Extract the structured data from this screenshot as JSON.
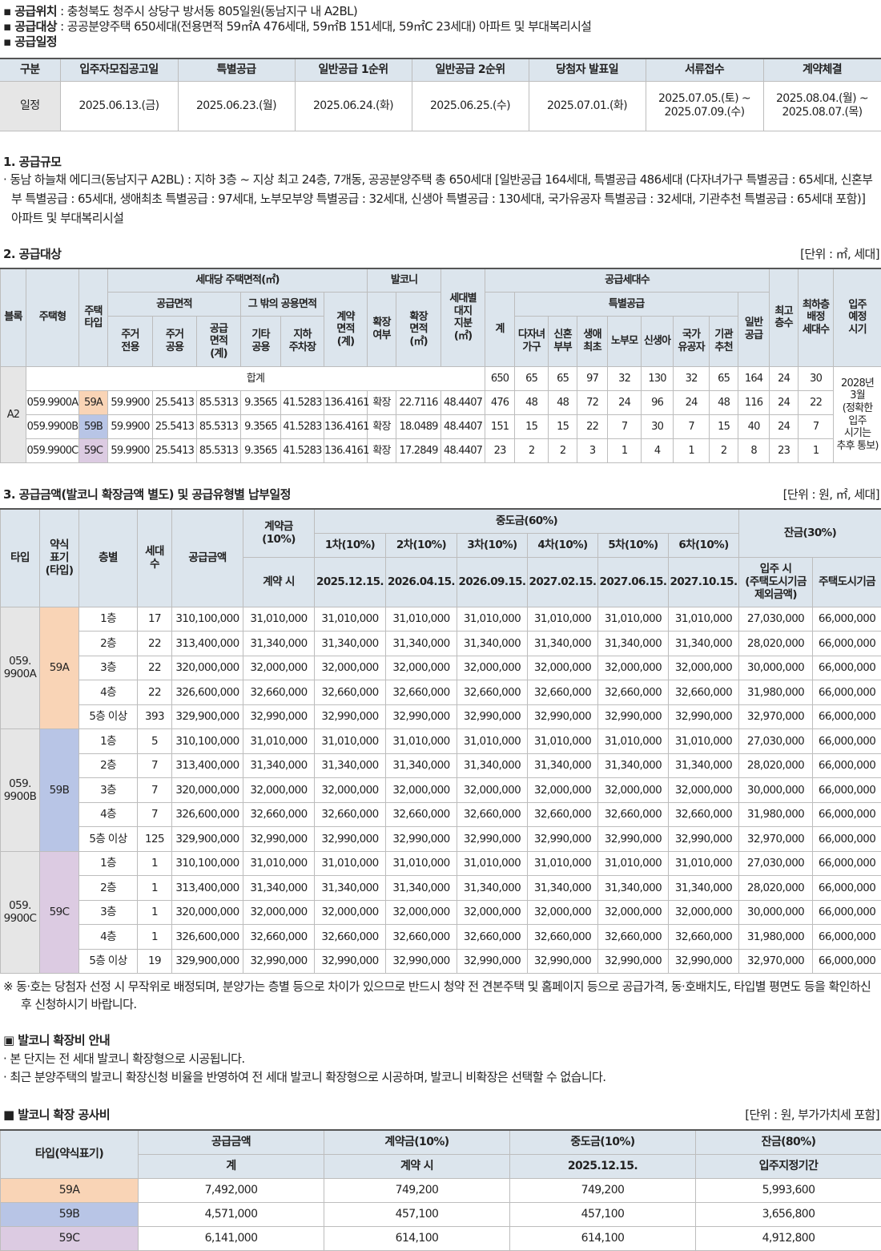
{
  "info": [
    {
      "label": "▪ 공급위치",
      "text": " : 충청북도 청주시 상당구 방서동 805일원(동남지구 내 A2BL)"
    },
    {
      "label": "▪ 공급대상",
      "text": " : 공공분양주택 650세대(전용면적 59㎡A 476세대, 59㎡B 151세대, 59㎡C 23세대) 아파트 및 부대복리시설"
    },
    {
      "label": "▪ 공급일정"
    }
  ],
  "schedule": {
    "headers": [
      "구분",
      "입주자모집공고일",
      "특별공급",
      "일반공급 1순위",
      "일반공급 2순위",
      "당첨자 발표일",
      "서류접수",
      "계약체결"
    ],
    "row": [
      "일정",
      "2025.06.13.(금)",
      "2025.06.23.(월)",
      "2025.06.24.(화)",
      "2025.06.25.(수)",
      "2025.07.01.(화)",
      "2025.07.05.(토) ~\n2025.07.09.(수)",
      "2025.08.04.(월) ~\n2025.08.07.(목)"
    ]
  },
  "scale": {
    "title": "1. 공급규모",
    "text": "· 동남 하늘채 에디크(동남지구 A2BL) : 지하 3층 ~ 지상 최고 24층, 7개동, 공공분양주택 총 650세대 [일반공급 164세대, 특별공급 486세대 (다자녀가구 특별공급 : 65세대, 신혼부부 특별공급 : 65세대, 생애최초 특별공급 : 97세대, 노부모부양 특별공급 : 32세대, 신생아 특별공급 : 130세대, 국가유공자 특별공급 : 32세대, 기관추천 특별공급 : 65세대 포함)] 아파트 및 부대복리시설"
  },
  "target": {
    "title": "2. 공급대상",
    "unit": "[단위 : ㎡, 세대]",
    "headers": [
      "블록",
      "주택형",
      "주택\n타입",
      "세대당 주택면적(㎡)",
      "발코니",
      "세대별\n대지\n지분\n(㎡)",
      "공급세대수",
      "최고\n층수",
      "최하층\n배정\n세대수",
      "입주\n예정\n시기",
      "공급면적",
      "그 밖의 공용면적",
      "계약\n면적\n(계)",
      "확장\n여부",
      "확장\n면적\n(㎡)",
      "계",
      "특별공급",
      "일반\n공급",
      "주거\n전용",
      "주거\n공용",
      "공급\n면적\n(계)",
      "기타\n공용",
      "지하\n주차장",
      "다자녀\n가구",
      "신혼\n부부",
      "생애\n최초",
      "노부모",
      "신생아",
      "국가\n유공자",
      "기관\n추천"
    ],
    "block": "A2",
    "total_label": "합계",
    "total": [
      "650",
      "65",
      "65",
      "97",
      "32",
      "130",
      "32",
      "65",
      "164",
      "24",
      "30"
    ],
    "move_in": "2028년\n3월\n(정확한\n입주\n시기는\n추후 통보)",
    "rows": [
      {
        "color": "#f9d4b6",
        "cells": [
          "059.9900A",
          "59A",
          "59.9900",
          "25.5413",
          "85.5313",
          "9.3565",
          "41.5283",
          "136.4161",
          "확장",
          "22.7116",
          "48.4407",
          "476",
          "48",
          "48",
          "72",
          "24",
          "96",
          "24",
          "48",
          "116",
          "24",
          "22"
        ]
      },
      {
        "color": "#b8c5e6",
        "cells": [
          "059.9900B",
          "59B",
          "59.9900",
          "25.5413",
          "85.5313",
          "9.3565",
          "41.5283",
          "136.4161",
          "확장",
          "18.0489",
          "48.4407",
          "151",
          "15",
          "15",
          "22",
          "7",
          "30",
          "7",
          "15",
          "40",
          "24",
          "7"
        ]
      },
      {
        "color": "#dccbe2",
        "cells": [
          "059.9900C",
          "59C",
          "59.9900",
          "25.5413",
          "85.5313",
          "9.3565",
          "41.5283",
          "136.4161",
          "확장",
          "17.2849",
          "48.4407",
          "23",
          "2",
          "2",
          "3",
          "1",
          "4",
          "1",
          "2",
          "8",
          "23",
          "1"
        ]
      }
    ]
  },
  "price": {
    "title": "3. 공급금액(발코니 확장금액 별도) 및 공급유형별 납부일정",
    "unit": "[단위 : 원, ㎡, 세대]",
    "headers": [
      "타입",
      "약식\n표기\n(타입)",
      "층별",
      "세대\n수",
      "공급금액",
      "계약금\n(10%)",
      "중도금(60%)",
      "잔금(30%)",
      "1차(10%)",
      "2차(10%)",
      "3차(10%)",
      "4차(10%)",
      "5차(10%)",
      "6차(10%)",
      "계약 시",
      "2025.12.15.",
      "2026.04.15.",
      "2026.09.15.",
      "2027.02.15.",
      "2027.06.15.",
      "2027.10.15.",
      "입주 시\n(주택도시기금\n제외금액)",
      "주택도시기금"
    ],
    "groups": [
      {
        "type": "059.\n9900A",
        "short": "59A",
        "color": "#f9d4b6",
        "rows": [
          [
            "1층",
            "17",
            "310,100,000",
            "31,010,000",
            "31,010,000",
            "31,010,000",
            "31,010,000",
            "31,010,000",
            "31,010,000",
            "31,010,000",
            "27,030,000",
            "66,000,000"
          ],
          [
            "2층",
            "22",
            "313,400,000",
            "31,340,000",
            "31,340,000",
            "31,340,000",
            "31,340,000",
            "31,340,000",
            "31,340,000",
            "31,340,000",
            "28,020,000",
            "66,000,000"
          ],
          [
            "3층",
            "22",
            "320,000,000",
            "32,000,000",
            "32,000,000",
            "32,000,000",
            "32,000,000",
            "32,000,000",
            "32,000,000",
            "32,000,000",
            "30,000,000",
            "66,000,000"
          ],
          [
            "4층",
            "22",
            "326,600,000",
            "32,660,000",
            "32,660,000",
            "32,660,000",
            "32,660,000",
            "32,660,000",
            "32,660,000",
            "32,660,000",
            "31,980,000",
            "66,000,000"
          ],
          [
            "5층 이상",
            "393",
            "329,900,000",
            "32,990,000",
            "32,990,000",
            "32,990,000",
            "32,990,000",
            "32,990,000",
            "32,990,000",
            "32,990,000",
            "32,970,000",
            "66,000,000"
          ]
        ]
      },
      {
        "type": "059.\n9900B",
        "short": "59B",
        "color": "#b8c5e6",
        "rows": [
          [
            "1층",
            "5",
            "310,100,000",
            "31,010,000",
            "31,010,000",
            "31,010,000",
            "31,010,000",
            "31,010,000",
            "31,010,000",
            "31,010,000",
            "27,030,000",
            "66,000,000"
          ],
          [
            "2층",
            "7",
            "313,400,000",
            "31,340,000",
            "31,340,000",
            "31,340,000",
            "31,340,000",
            "31,340,000",
            "31,340,000",
            "31,340,000",
            "28,020,000",
            "66,000,000"
          ],
          [
            "3층",
            "7",
            "320,000,000",
            "32,000,000",
            "32,000,000",
            "32,000,000",
            "32,000,000",
            "32,000,000",
            "32,000,000",
            "32,000,000",
            "30,000,000",
            "66,000,000"
          ],
          [
            "4층",
            "7",
            "326,600,000",
            "32,660,000",
            "32,660,000",
            "32,660,000",
            "32,660,000",
            "32,660,000",
            "32,660,000",
            "32,660,000",
            "31,980,000",
            "66,000,000"
          ],
          [
            "5층 이상",
            "125",
            "329,900,000",
            "32,990,000",
            "32,990,000",
            "32,990,000",
            "32,990,000",
            "32,990,000",
            "32,990,000",
            "32,990,000",
            "32,970,000",
            "66,000,000"
          ]
        ]
      },
      {
        "type": "059.\n9900C",
        "short": "59C",
        "color": "#dccbe2",
        "rows": [
          [
            "1층",
            "1",
            "310,100,000",
            "31,010,000",
            "31,010,000",
            "31,010,000",
            "31,010,000",
            "31,010,000",
            "31,010,000",
            "31,010,000",
            "27,030,000",
            "66,000,000"
          ],
          [
            "2층",
            "1",
            "313,400,000",
            "31,340,000",
            "31,340,000",
            "31,340,000",
            "31,340,000",
            "31,340,000",
            "31,340,000",
            "31,340,000",
            "28,020,000",
            "66,000,000"
          ],
          [
            "3층",
            "1",
            "320,000,000",
            "32,000,000",
            "32,000,000",
            "32,000,000",
            "32,000,000",
            "32,000,000",
            "32,000,000",
            "32,000,000",
            "30,000,000",
            "66,000,000"
          ],
          [
            "4층",
            "1",
            "326,600,000",
            "32,660,000",
            "32,660,000",
            "32,660,000",
            "32,660,000",
            "32,660,000",
            "32,660,000",
            "32,660,000",
            "31,980,000",
            "66,000,000"
          ],
          [
            "5층 이상",
            "19",
            "329,900,000",
            "32,990,000",
            "32,990,000",
            "32,990,000",
            "32,990,000",
            "32,990,000",
            "32,990,000",
            "32,990,000",
            "32,970,000",
            "66,000,000"
          ]
        ]
      }
    ]
  },
  "note": "※ 동·호는 당첨자 선정 시 무작위로 배정되며, 분양가는 층별 등으로 차이가 있으므로 반드시 청약 전 견본주택 및 홈페이지 등으로 공급가격, 동·호배치도, 타입별 평면도 등을 확인하신 후 신청하시기 바랍니다.",
  "balcony_info": {
    "title": "▣ 발코니 확장비 안내",
    "lines": [
      "· 본 단지는 전 세대 발코니 확장형으로 시공됩니다.",
      "· 최근 분양주택의 발코니 확장신청 비율을 반영하여 전 세대 발코니 확장형으로 시공하며, 발코니 비확장은 선택할 수 없습니다."
    ]
  },
  "balcony_cost": {
    "title": "■ 발코니 확장 공사비",
    "unit": "[단위 : 원, 부가가치세 포함]",
    "headers": [
      "타입(약식표기)",
      "공급금액",
      "계약금(10%)",
      "중도금(10%)",
      "잔금(80%)",
      "계",
      "계약 시",
      "2025.12.15.",
      "입주지정기간"
    ],
    "rows": [
      {
        "type": "59A",
        "color": "#f9d4b6",
        "values": [
          "7,492,000",
          "749,200",
          "749,200",
          "5,993,600"
        ]
      },
      {
        "type": "59B",
        "color": "#b8c5e6",
        "values": [
          "4,571,000",
          "457,100",
          "457,100",
          "3,656,800"
        ]
      },
      {
        "type": "59C",
        "color": "#dccbe2",
        "values": [
          "6,141,000",
          "614,100",
          "614,100",
          "4,912,800"
        ]
      }
    ]
  }
}
